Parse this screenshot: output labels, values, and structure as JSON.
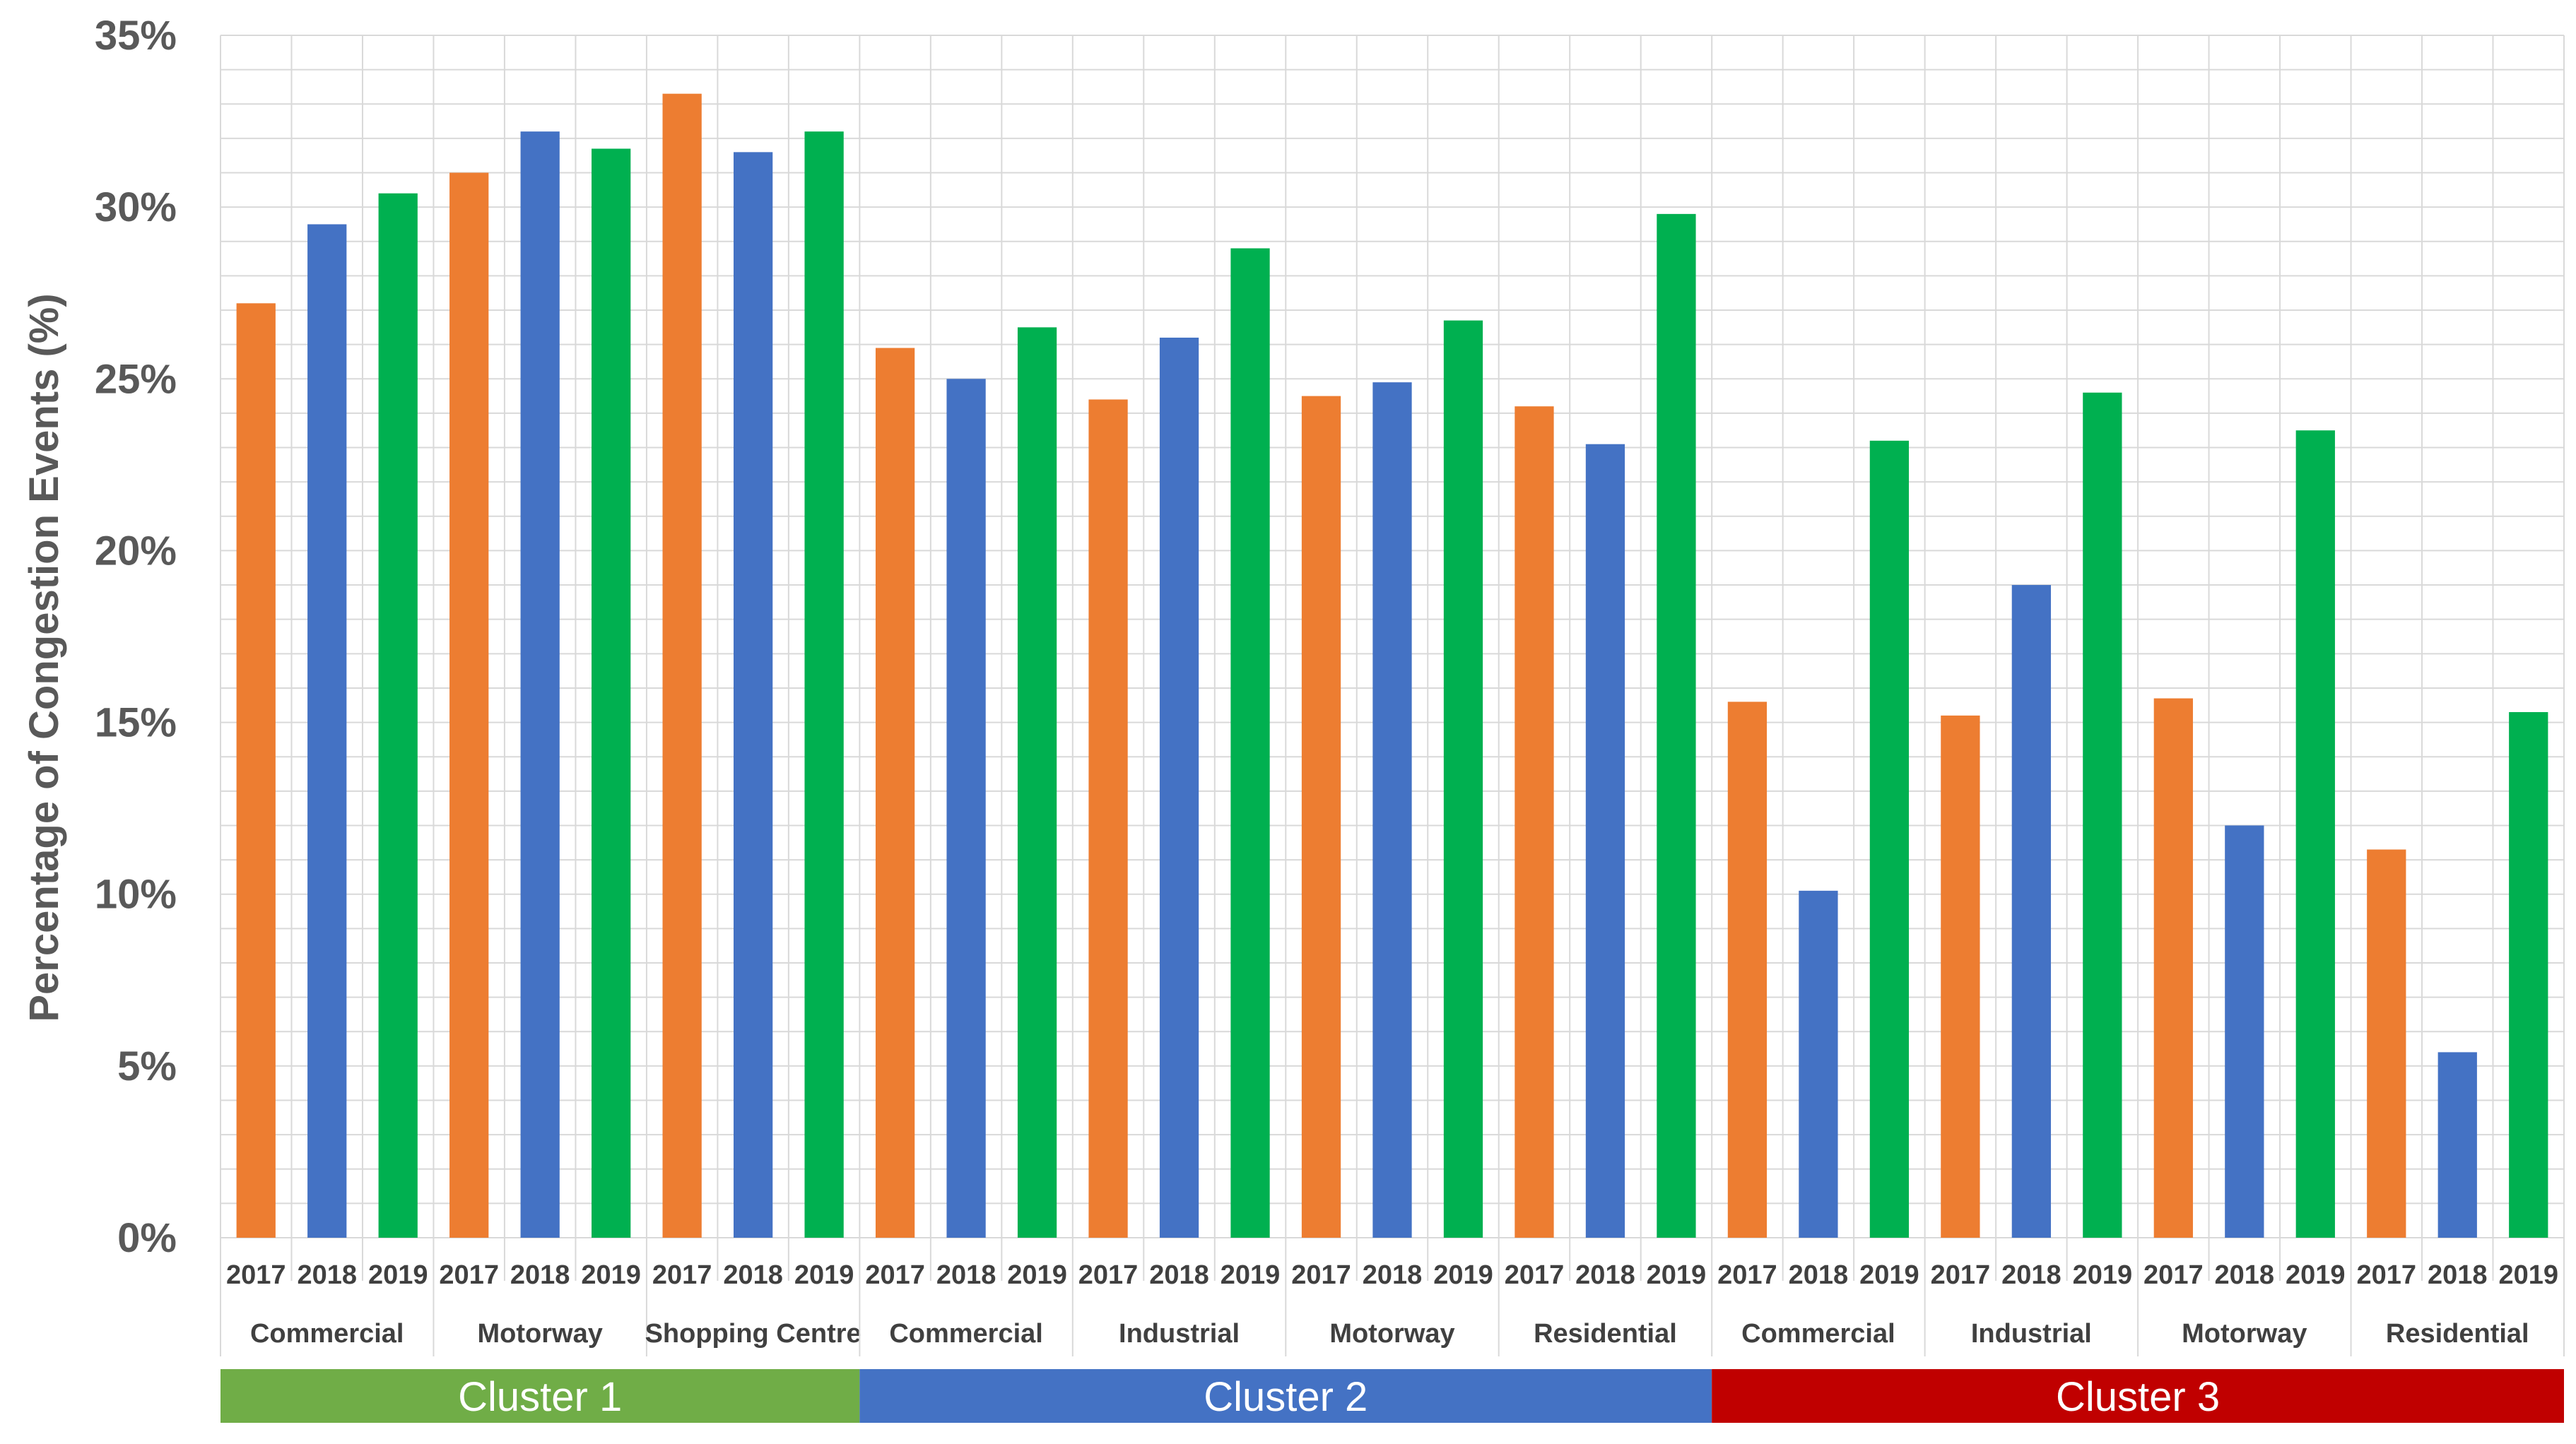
{
  "chart_data": {
    "type": "bar",
    "ylabel": "Percentage of Congestion Events (%)",
    "ylim": [
      0,
      35
    ],
    "yticks": [
      "0%",
      "5%",
      "10%",
      "15%",
      "20%",
      "25%",
      "30%",
      "35%"
    ],
    "grid": true,
    "years": [
      "2017",
      "2018",
      "2019"
    ],
    "year_colors": [
      "#ED7D31",
      "#4472C4",
      "#00B050"
    ],
    "clusters": [
      {
        "label": "Cluster 1",
        "color": "#70AD47",
        "groups": [
          {
            "label": "Commercial",
            "values": [
              27.2,
              29.5,
              30.4
            ]
          },
          {
            "label": "Motorway",
            "values": [
              31.0,
              32.2,
              31.7
            ]
          },
          {
            "label": "Shopping Centre",
            "values": [
              33.3,
              31.6,
              32.2
            ]
          }
        ]
      },
      {
        "label": "Cluster 2",
        "color": "#4472C4",
        "groups": [
          {
            "label": "Commercial",
            "values": [
              25.9,
              25.0,
              26.5
            ]
          },
          {
            "label": "Industrial",
            "values": [
              24.4,
              26.2,
              28.8
            ]
          },
          {
            "label": "Motorway",
            "values": [
              24.5,
              24.9,
              26.7
            ]
          },
          {
            "label": "Residential",
            "values": [
              24.2,
              23.1,
              29.8
            ]
          }
        ]
      },
      {
        "label": "Cluster 3",
        "color": "#C00000",
        "groups": [
          {
            "label": "Commercial",
            "values": [
              15.6,
              10.1,
              23.2
            ]
          },
          {
            "label": "Industrial",
            "values": [
              15.2,
              19.0,
              24.6
            ]
          },
          {
            "label": "Motorway",
            "values": [
              15.7,
              12.0,
              23.5
            ]
          },
          {
            "label": "Residential",
            "values": [
              11.3,
              5.4,
              15.3
            ]
          }
        ]
      }
    ]
  }
}
